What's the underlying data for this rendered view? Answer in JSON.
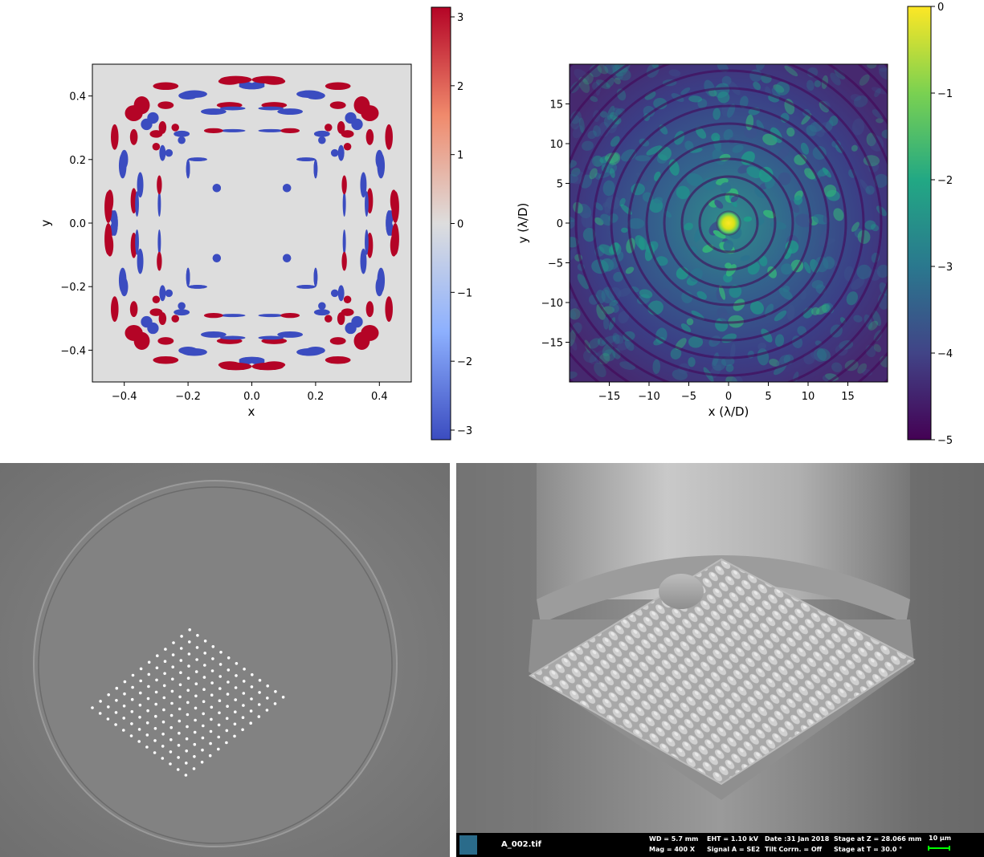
{
  "chart_data": [
    {
      "type": "heatmap",
      "title": "",
      "xlabel": "x",
      "ylabel": "y",
      "xlim": [
        -0.5,
        0.5
      ],
      "ylim": [
        -0.5,
        0.5
      ],
      "xticks": [
        -0.4,
        -0.2,
        0.0,
        0.2,
        0.4
      ],
      "yticks": [
        -0.4,
        -0.2,
        0.0,
        0.2,
        0.4
      ],
      "xtick_labels": [
        "−0.4",
        "−0.2",
        "0.0",
        "0.2",
        "0.4"
      ],
      "ytick_labels": [
        "−0.4",
        "−0.2",
        "0.0",
        "0.2",
        "0.4"
      ],
      "colorbar": {
        "colormap": "coolwarm",
        "range": [
          -3.14,
          3.14
        ],
        "ticks": [
          3,
          2,
          1,
          0,
          -1,
          -2,
          -3
        ],
        "tick_labels": [
          "3",
          "2",
          "1",
          "0",
          "−1",
          "−2",
          "−3"
        ],
        "colors": [
          "#b40426",
          "#f7b89c",
          "#dddddd",
          "#9dbdff",
          "#3b4cc0"
        ]
      },
      "background_color": "#dddddd"
    },
    {
      "type": "heatmap",
      "title": "",
      "xlabel": "x (λ/D)",
      "ylabel": "y (λ/D)",
      "xlim": [
        -20,
        20
      ],
      "ylim": [
        -20,
        20
      ],
      "xticks": [
        -15,
        -10,
        -5,
        0,
        5,
        10,
        15
      ],
      "yticks": [
        -15,
        -10,
        -5,
        0,
        5,
        10,
        15
      ],
      "xtick_labels": [
        "−15",
        "−10",
        "−5",
        "0",
        "5",
        "10",
        "15"
      ],
      "ytick_labels": [
        "−15",
        "−10",
        "−5",
        "0",
        "5",
        "10",
        "15"
      ],
      "colorbar": {
        "colormap": "viridis",
        "range": [
          -5,
          0
        ],
        "ticks": [
          0,
          -1,
          -2,
          -3,
          -4,
          -5
        ],
        "tick_labels": [
          "0",
          "−1",
          "−2",
          "−3",
          "−4",
          "−5"
        ],
        "colors": [
          "#fde725",
          "#5ec962",
          "#21918c",
          "#3b528b",
          "#440154"
        ]
      }
    }
  ],
  "photos": {
    "fiber_end_face": {
      "description_icon": "fiber-core-grid-photo",
      "grid_rows": 13,
      "grid_cols": 13
    },
    "sem_image": {
      "file_name": "A_002.tif",
      "wd": "WD =  5.7 mm",
      "mag": "Mag =    400 X",
      "eht": "EHT =  1.10 kV",
      "signal": "Signal A = SE2",
      "date": "Date :31 Jan 2018",
      "tilt": "Tilt Corrn. = Off",
      "stage_z": "Stage at Z = 28.066 mm",
      "stage_t": "Stage at T =  30.0 °",
      "scale_bar": "10 µm",
      "scale_bar_color": "#00ff00"
    }
  }
}
